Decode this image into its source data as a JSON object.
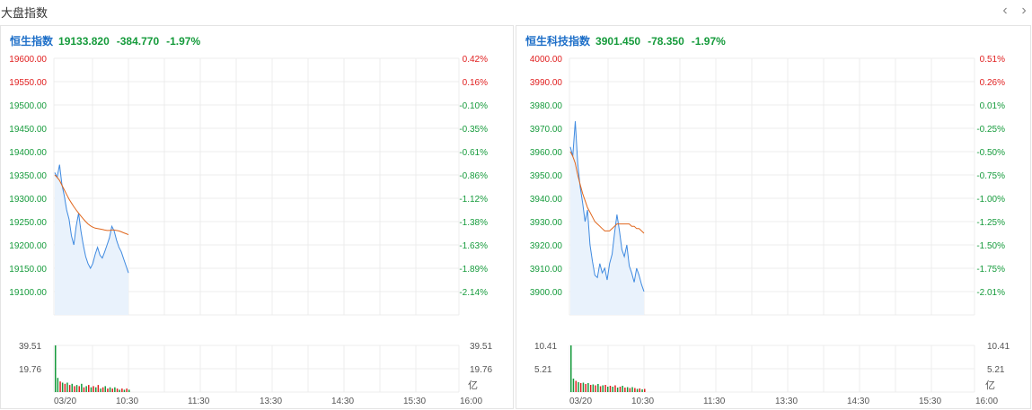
{
  "header": {
    "title": "大盘指数",
    "prev_icon": "chevron-left-icon",
    "next_icon": "chevron-right-icon"
  },
  "colors": {
    "line": "#3f8ae0",
    "avg": "#e0661c",
    "up": "#e02020",
    "down": "#169b3c",
    "name": "#1e6fc8",
    "grid": "#ececec",
    "fill": "#e9f2fc"
  },
  "chart_data": [
    {
      "type": "line",
      "name": "恒生指数",
      "quote": {
        "last": "19133.820",
        "change": "-384.770",
        "change_pct": "-1.97%"
      },
      "y_ticks_left": [
        "19600.00",
        "19550.00",
        "19500.00",
        "19450.00",
        "19400.00",
        "19350.00",
        "19300.00",
        "19250.00",
        "19200.00",
        "19150.00",
        "19100.00"
      ],
      "y_ticks_right": [
        "0.42%",
        "0.16%",
        "-0.10%",
        "-0.35%",
        "-0.61%",
        "-0.86%",
        "-1.12%",
        "-1.38%",
        "-1.63%",
        "-1.89%",
        "-2.14%"
      ],
      "ylim": [
        19050,
        19600
      ],
      "x_ticks": [
        "03/20",
        "10:30",
        "11:30",
        "13:30",
        "14:30",
        "15:30",
        "16:00"
      ],
      "price": [
        19355,
        19345,
        19372,
        19330,
        19305,
        19275,
        19255,
        19220,
        19200,
        19240,
        19268,
        19230,
        19200,
        19175,
        19160,
        19150,
        19160,
        19180,
        19195,
        19178,
        19172,
        19185,
        19200,
        19215,
        19240,
        19230,
        19210,
        19195,
        19185,
        19170,
        19155,
        19140
      ],
      "avg": [
        19350,
        19345,
        19338,
        19328,
        19318,
        19308,
        19298,
        19290,
        19282,
        19275,
        19268,
        19262,
        19256,
        19250,
        19245,
        19241,
        19238,
        19236,
        19235,
        19234,
        19233,
        19232,
        19231,
        19231,
        19232,
        19232,
        19231,
        19230,
        19228,
        19226,
        19224,
        19222
      ],
      "volume": {
        "labels": [
          "39.51",
          "19.76"
        ],
        "unit": "亿",
        "max": 39.51,
        "values": [
          39.5,
          12,
          9,
          8,
          7,
          8,
          6,
          7,
          5,
          6,
          5,
          7,
          4,
          5,
          6,
          4,
          5,
          4,
          6,
          3,
          4,
          5,
          3,
          4,
          3,
          4,
          3,
          2,
          3,
          2,
          3,
          2
        ]
      }
    },
    {
      "type": "line",
      "name": "恒生科技指数",
      "quote": {
        "last": "3901.450",
        "change": "-78.350",
        "change_pct": "-1.97%"
      },
      "y_ticks_left": [
        "4000.00",
        "3990.00",
        "3980.00",
        "3970.00",
        "3960.00",
        "3950.00",
        "3940.00",
        "3930.00",
        "3920.00",
        "3910.00",
        "3900.00"
      ],
      "y_ticks_right": [
        "0.51%",
        "0.26%",
        "0.01%",
        "-0.25%",
        "-0.50%",
        "-0.75%",
        "-1.00%",
        "-1.25%",
        "-1.50%",
        "-1.75%",
        "-2.01%"
      ],
      "ylim": [
        3890,
        4000
      ],
      "x_ticks": [
        "03/20",
        "10:30",
        "11:30",
        "13:30",
        "14:30",
        "15:30",
        "16:00"
      ],
      "price": [
        3962,
        3958,
        3973,
        3955,
        3945,
        3938,
        3930,
        3935,
        3920,
        3913,
        3907,
        3906,
        3912,
        3908,
        3910,
        3905,
        3912,
        3916,
        3925,
        3933,
        3926,
        3918,
        3915,
        3920,
        3911,
        3908,
        3904,
        3910,
        3907,
        3903,
        3900
      ],
      "avg": [
        3960,
        3958,
        3955,
        3950,
        3946,
        3942,
        3939,
        3936,
        3934,
        3932,
        3930,
        3929,
        3928,
        3927,
        3926,
        3926,
        3926,
        3927,
        3928,
        3929,
        3929,
        3929,
        3929,
        3929,
        3929,
        3928,
        3928,
        3927,
        3927,
        3926,
        3925
      ],
      "volume": {
        "labels": [
          "10.41",
          "5.21"
        ],
        "unit": "亿",
        "max": 10.41,
        "values": [
          10.4,
          3,
          2.5,
          2.2,
          2,
          2.1,
          1.8,
          2,
          1.6,
          1.7,
          1.5,
          1.8,
          1.3,
          1.5,
          1.6,
          1.2,
          1.4,
          1.2,
          1.5,
          1,
          1.2,
          1.4,
          1,
          1.1,
          0.9,
          1.1,
          0.9,
          0.7,
          0.8,
          0.6,
          0.7
        ]
      }
    }
  ]
}
